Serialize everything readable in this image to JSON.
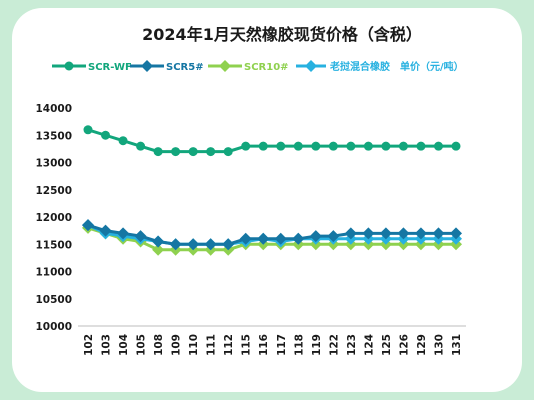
{
  "chart_data": {
    "type": "line",
    "title": "2024年1月天然橡胶现货价格（含税）",
    "unit_label": "单价（元/吨）",
    "x": [
      "102",
      "103",
      "104",
      "105",
      "108",
      "109",
      "110",
      "111",
      "112",
      "115",
      "116",
      "117",
      "118",
      "119",
      "122",
      "123",
      "124",
      "125",
      "126",
      "129",
      "130",
      "131"
    ],
    "ylim": [
      10000,
      14000
    ],
    "yticks": [
      10000,
      10500,
      11000,
      11500,
      12000,
      12500,
      13000,
      13500,
      14000
    ],
    "grid": false,
    "legend_position": "top",
    "series": [
      {
        "name": "SCR-WF",
        "marker": "circle",
        "color": "#12a67c",
        "values": [
          13600,
          13500,
          13400,
          13300,
          13200,
          13200,
          13200,
          13200,
          13200,
          13300,
          13300,
          13300,
          13300,
          13300,
          13300,
          13300,
          13300,
          13300,
          13300,
          13300,
          13300,
          13300
        ]
      },
      {
        "name": "SCR5#",
        "marker": "diamond",
        "color": "#1576a3",
        "values": [
          11850,
          11750,
          11700,
          11650,
          11550,
          11500,
          11500,
          11500,
          11500,
          11600,
          11600,
          11600,
          11600,
          11650,
          11650,
          11700,
          11700,
          11700,
          11700,
          11700,
          11700,
          11700
        ]
      },
      {
        "name": "SCR10#",
        "marker": "diamond",
        "color": "#8fd14f",
        "values": [
          11800,
          11700,
          11600,
          11550,
          11400,
          11400,
          11400,
          11400,
          11400,
          11500,
          11500,
          11500,
          11500,
          11500,
          11500,
          11500,
          11500,
          11500,
          11500,
          11500,
          11500,
          11500
        ]
      },
      {
        "name": "老挝混合橡胶",
        "marker": "diamond",
        "color": "#27b1e0",
        "values": [
          11850,
          11700,
          11650,
          11600,
          11550,
          11500,
          11500,
          11500,
          11500,
          11550,
          11600,
          11550,
          11600,
          11600,
          11600,
          11600,
          11600,
          11600,
          11600,
          11600,
          11600,
          11600
        ]
      }
    ]
  }
}
